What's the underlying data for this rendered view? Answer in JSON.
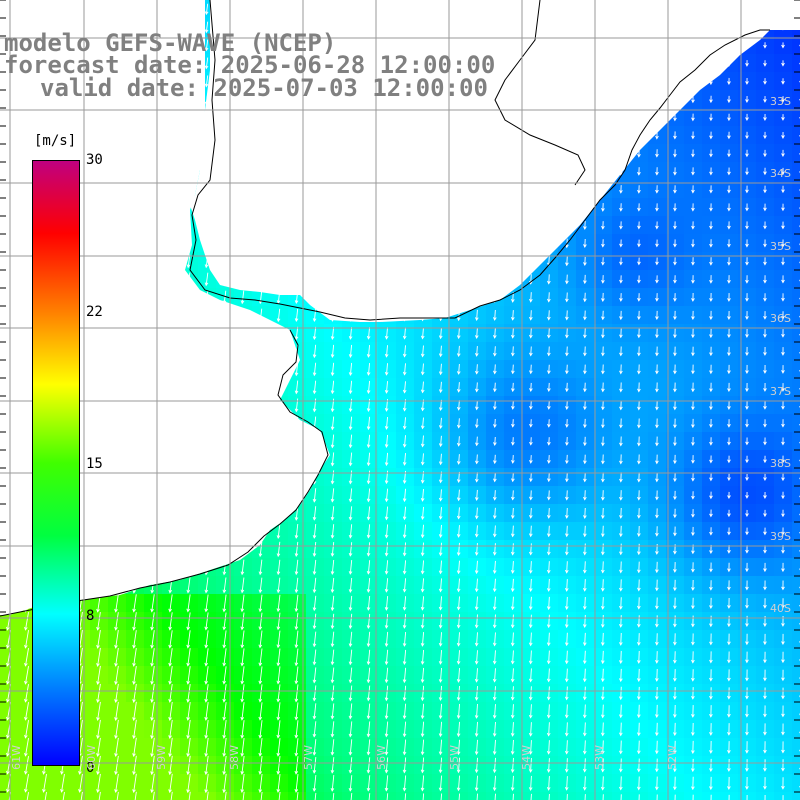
{
  "title": {
    "line1": "modelo GEFS-WAVE (NCEP)",
    "line2": "forecast date: 2025-06-28 12:00:00",
    "line3": "valid date: 2025-07-03 12:00:00"
  },
  "colorbar": {
    "unit": "[m/s]",
    "ticks": [
      "30",
      "22",
      "15",
      "8",
      "0"
    ],
    "tick_values": [
      30,
      22,
      15,
      8,
      0
    ],
    "colors": [
      "#0000ff",
      "#0080ff",
      "#00ffff",
      "#00ff40",
      "#40ff00",
      "#ffff00",
      "#ff8000",
      "#ff0000",
      "#c00080"
    ]
  },
  "lat_labels": [
    "33S",
    "34S",
    "35S",
    "36S",
    "37S",
    "38S",
    "39S",
    "40S"
  ],
  "lon_labels": [
    "61W",
    "60W",
    "59W",
    "58W",
    "57W",
    "56W",
    "55W",
    "54W",
    "53W",
    "52W"
  ],
  "land_color": "#ffffff",
  "grid_color": "#9a9a9a"
}
